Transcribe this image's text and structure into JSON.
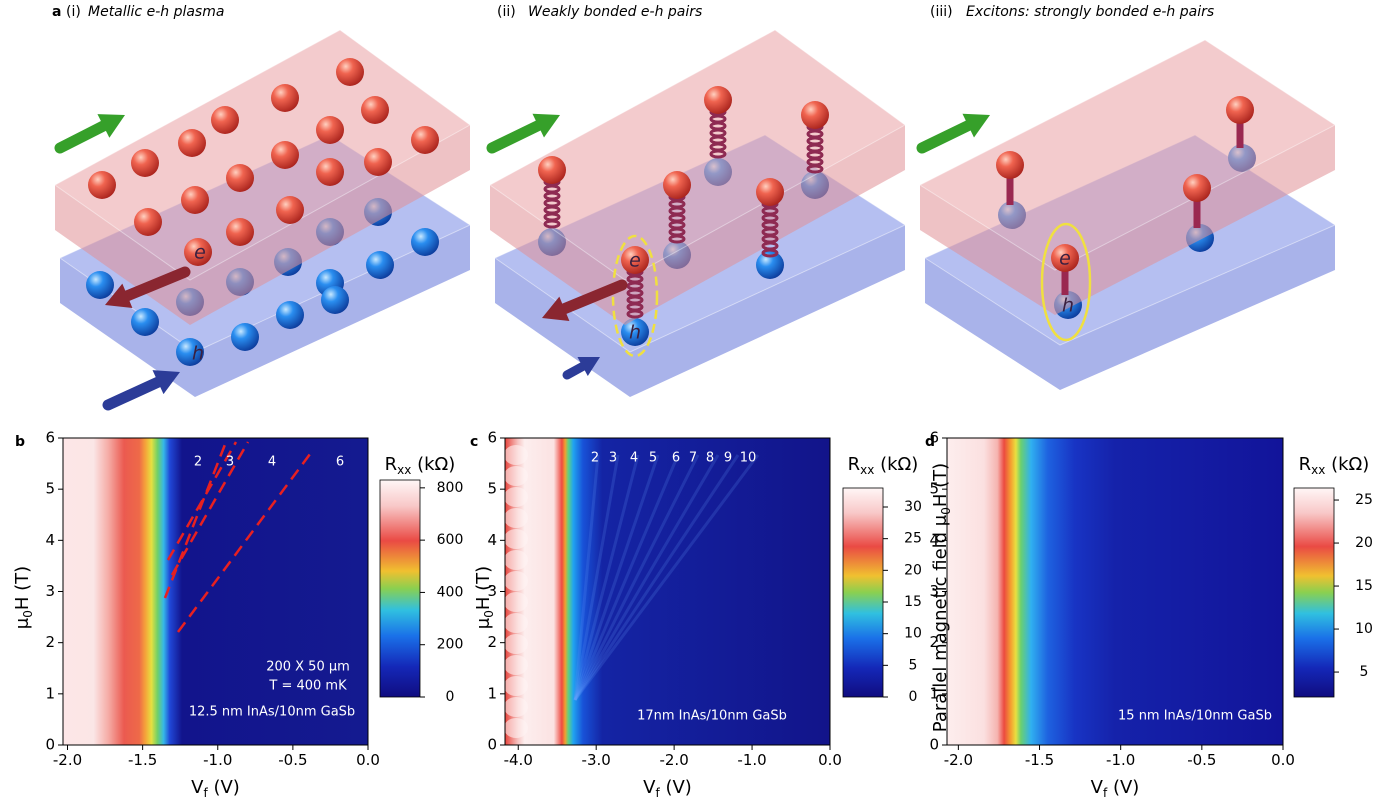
{
  "figure_a": {
    "letter": "a",
    "subpanels": [
      {
        "numeral": "(i)",
        "title": "Metallic e-h plasma",
        "electron_label": "e",
        "hole_label": "h"
      },
      {
        "numeral": "(ii)",
        "title": "Weakly bonded e-h pairs",
        "electron_label": "e",
        "hole_label": "h"
      },
      {
        "numeral": "(iii)",
        "title": "Excitons: strongly bonded e-h pairs",
        "electron_label": "e",
        "hole_label": "h"
      }
    ]
  },
  "maps": [
    {
      "letter": "b",
      "xlabel": [
        "V",
        "f",
        " (V)"
      ],
      "ylabel": [
        "μ",
        "0",
        "H (T)"
      ],
      "xlim": [
        -2.03,
        0
      ],
      "ylim": [
        0,
        6
      ],
      "xticks": [
        {
          "value": -2,
          "label": "-2.0"
        },
        {
          "value": -1.5,
          "label": "-1.5"
        },
        {
          "value": -1,
          "label": "-1.0"
        },
        {
          "value": -0.5,
          "label": "-0.5"
        },
        {
          "value": 0,
          "label": "0.0"
        }
      ],
      "yticks": [
        0,
        1,
        2,
        3,
        4,
        5,
        6
      ],
      "colorbar": {
        "label": [
          "R",
          "xx",
          " (kΩ)"
        ],
        "clim": [
          0,
          830
        ],
        "ticks": [
          0,
          200,
          400,
          600,
          800
        ]
      },
      "annotations": [
        "2",
        "3",
        "4",
        "6",
        "200 X 50 μm",
        "T = 400 mK",
        "12.5 nm InAs/10nm GaSb"
      ]
    },
    {
      "letter": "c",
      "xlabel": [
        "V",
        "f",
        " (V)"
      ],
      "ylabel": [
        "μ",
        "0",
        "H (T)"
      ],
      "xlim": [
        -4.17,
        0
      ],
      "ylim": [
        0,
        6
      ],
      "xticks": [
        {
          "value": -4,
          "label": "-4.0"
        },
        {
          "value": -3,
          "label": "-3.0"
        },
        {
          "value": -2,
          "label": "-2.0"
        },
        {
          "value": -1,
          "label": "-1.0"
        },
        {
          "value": 0,
          "label": "0.0"
        }
      ],
      "yticks": [
        0,
        1,
        2,
        3,
        4,
        5,
        6
      ],
      "colorbar": {
        "label": [
          "R",
          "xx",
          " (kΩ)"
        ],
        "clim": [
          0,
          33
        ],
        "ticks": [
          0,
          5,
          10,
          15,
          20,
          25,
          30
        ]
      },
      "annotations": [
        "2",
        "3",
        "4",
        "5",
        "6",
        "7",
        "8",
        "9",
        "10",
        "17nm InAs/10nm GaSb"
      ]
    },
    {
      "letter": "d",
      "xlabel": [
        "V",
        "f",
        " (V)"
      ],
      "ylabel": [
        "Parallel magnetic field μ",
        "0",
        "H (T)"
      ],
      "xlim": [
        -2.07,
        0
      ],
      "ylim": [
        0,
        6
      ],
      "xticks": [
        {
          "value": -2,
          "label": "-2.0"
        },
        {
          "value": -1.5,
          "label": "-1.5"
        },
        {
          "value": -1,
          "label": "-1.0"
        },
        {
          "value": -0.5,
          "label": "-0.5"
        },
        {
          "value": 0,
          "label": "0.0"
        }
      ],
      "yticks": [
        0,
        1,
        2,
        3,
        4,
        5,
        6
      ],
      "colorbar": {
        "label": [
          "R",
          "xx",
          " (kΩ)"
        ],
        "clim": [
          2.1,
          26.4
        ],
        "ticks": [
          5,
          10,
          15,
          20,
          25
        ]
      },
      "annotations": [
        "15 nm InAs/10nm GaSb"
      ]
    }
  ]
}
